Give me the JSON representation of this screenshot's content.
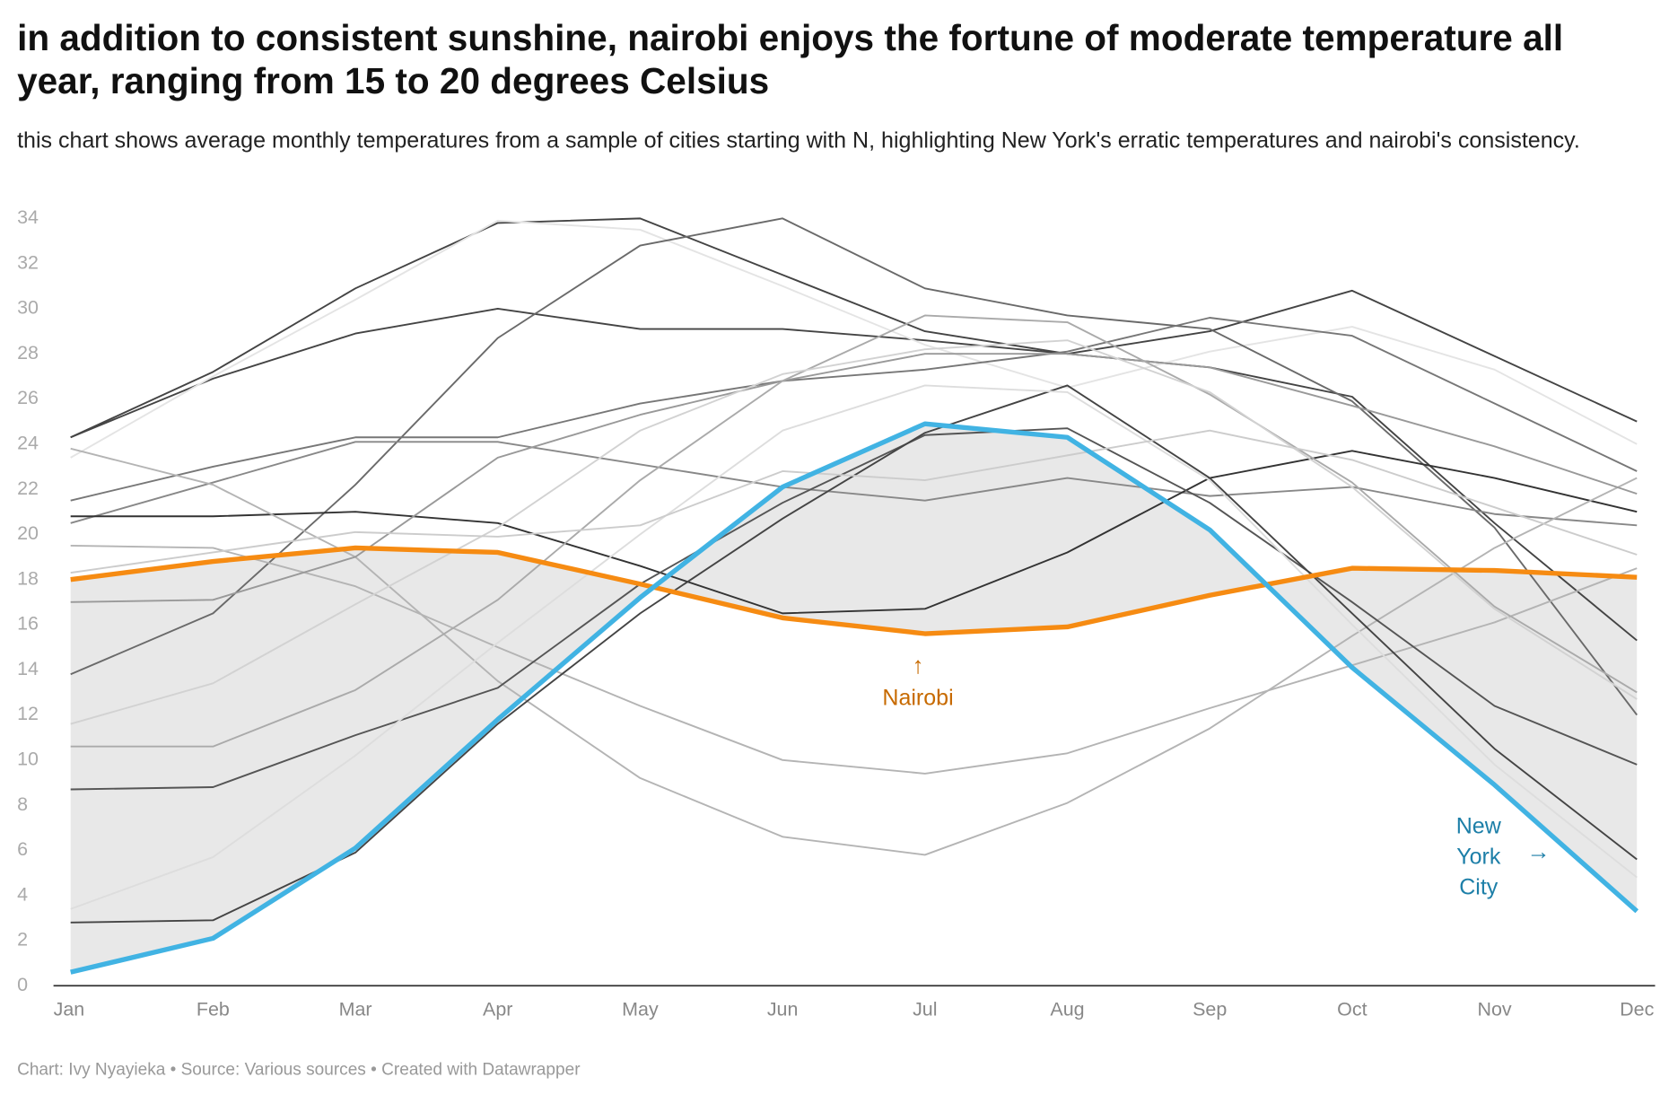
{
  "chart_data": {
    "type": "line",
    "title": "in addition to consistent sunshine, nairobi enjoys the fortune of moderate temperature all year, ranging from 15 to 20 degrees Celsius",
    "subtitle": "this chart shows average monthly temperatures from a sample of cities starting with N, highlighting New York's erratic temperatures and nairobi's consistency.",
    "footer": "Chart: Ivy Nyayieka • Source: Various sources • Created with Datawrapper",
    "categories": [
      "Jan",
      "Feb",
      "Mar",
      "Apr",
      "May",
      "Jun",
      "Jul",
      "Aug",
      "Sep",
      "Oct",
      "Nov",
      "Dec"
    ],
    "ylim": [
      0,
      34
    ],
    "yticks": [
      0,
      2,
      4,
      6,
      8,
      10,
      12,
      14,
      16,
      18,
      20,
      22,
      24,
      26,
      28,
      30,
      32,
      34
    ],
    "grid": false,
    "series": [
      {
        "name": "New York City",
        "color": "#41b3e3",
        "values": [
          0.6,
          2.1,
          6.1,
          11.8,
          17.2,
          22.1,
          24.9,
          24.3,
          20.2,
          14.1,
          8.9,
          3.3
        ]
      },
      {
        "name": "Nairobi",
        "color": "#f68b12",
        "values": [
          18.0,
          18.8,
          19.4,
          19.2,
          17.8,
          16.3,
          15.6,
          15.9,
          17.3,
          18.5,
          18.4,
          18.1
        ]
      },
      {
        "color": "#444444",
        "values": [
          24.3,
          27.2,
          30.9,
          33.8,
          34.0,
          31.5,
          29.0,
          28.0,
          27.4,
          26.1,
          20.5,
          15.3
        ]
      },
      {
        "color": "#444444",
        "values": [
          24.3,
          26.9,
          28.9,
          30.0,
          29.1,
          29.1,
          28.6,
          28.0,
          29.0,
          30.8,
          27.9,
          25.0
        ]
      },
      {
        "color": "#e4e4e4",
        "values": [
          23.4,
          27.0,
          30.4,
          33.9,
          33.5,
          31.0,
          28.4,
          26.5,
          28.1,
          29.2,
          27.3,
          24.0
        ]
      },
      {
        "color": "#6a6a6a",
        "values": [
          13.8,
          16.5,
          22.2,
          28.7,
          32.8,
          34.0,
          30.9,
          29.7,
          29.1,
          25.9,
          20.3,
          12.0
        ]
      },
      {
        "color": "#777777",
        "values": [
          21.5,
          23.0,
          24.3,
          24.3,
          25.8,
          26.8,
          27.3,
          28.1,
          29.6,
          28.8,
          25.8,
          22.8
        ]
      },
      {
        "color": "#888888",
        "values": [
          20.5,
          22.3,
          24.1,
          24.1,
          23.1,
          22.1,
          21.5,
          22.5,
          21.7,
          22.1,
          20.9,
          20.4
        ]
      },
      {
        "color": "#333333",
        "values": [
          20.8,
          20.8,
          21.0,
          20.5,
          18.6,
          16.5,
          16.7,
          19.2,
          22.5,
          23.7,
          22.5,
          21.0
        ]
      },
      {
        "color": "#b4b4b4",
        "values": [
          23.8,
          22.2,
          19.0,
          13.5,
          9.2,
          6.6,
          5.8,
          8.1,
          11.4,
          15.5,
          19.4,
          22.5
        ]
      },
      {
        "color": "#b4b4b4",
        "values": [
          19.5,
          19.4,
          17.7,
          15.0,
          12.4,
          10.0,
          9.4,
          10.3,
          12.3,
          14.2,
          16.1,
          18.5
        ]
      },
      {
        "color": "#999999",
        "values": [
          17.0,
          17.1,
          19.0,
          23.4,
          25.3,
          26.8,
          28.0,
          28.0,
          27.4,
          25.7,
          23.9,
          21.8
        ]
      },
      {
        "color": "#aaaaaa",
        "values": [
          10.6,
          10.6,
          13.1,
          17.1,
          22.4,
          26.8,
          29.7,
          29.4,
          26.2,
          22.3,
          16.8,
          13.0
        ]
      },
      {
        "color": "#555555",
        "values": [
          8.7,
          8.8,
          11.1,
          13.2,
          17.8,
          21.4,
          24.4,
          24.7,
          21.4,
          17.0,
          12.4,
          9.8
        ]
      },
      {
        "color": "#444444",
        "values": [
          2.8,
          2.9,
          5.9,
          11.6,
          16.5,
          20.7,
          24.5,
          26.6,
          22.5,
          16.5,
          10.5,
          5.6
        ]
      },
      {
        "color": "#dddddd",
        "values": [
          3.4,
          5.7,
          10.2,
          15.2,
          20.0,
          24.6,
          26.6,
          26.3,
          22.4,
          16.0,
          9.8,
          4.8
        ]
      },
      {
        "color": "#d2d2d2",
        "values": [
          11.6,
          13.4,
          16.9,
          20.3,
          24.6,
          27.1,
          28.2,
          28.6,
          26.3,
          22.1,
          16.7,
          12.7
        ]
      },
      {
        "color": "#cccccc",
        "values": [
          18.3,
          19.2,
          20.1,
          19.9,
          20.4,
          22.8,
          22.4,
          23.5,
          24.6,
          23.3,
          21.2,
          19.1
        ]
      }
    ],
    "annotations": [
      {
        "arrow": "↑",
        "lines": [
          "Nairobi"
        ],
        "color": "#c76a00"
      },
      {
        "arrow": "→",
        "lines": [
          "New",
          "York",
          "City"
        ],
        "color": "#1d7fa8"
      }
    ]
  }
}
